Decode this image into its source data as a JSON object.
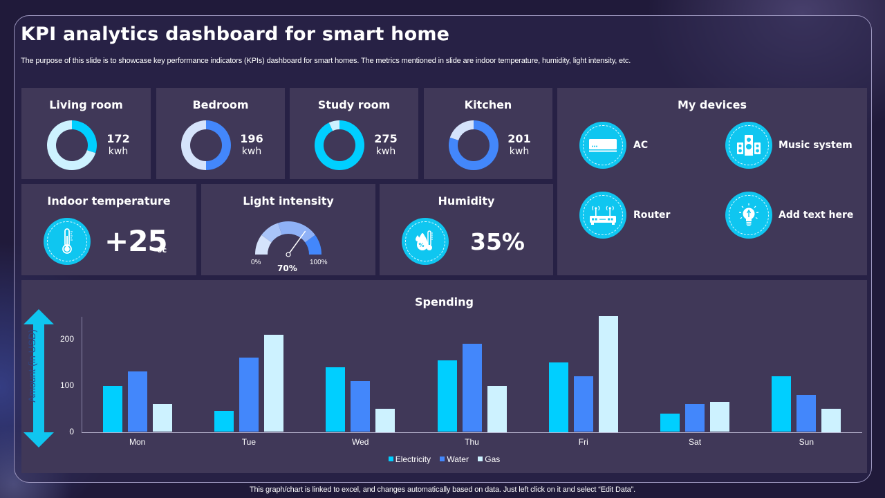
{
  "header": {
    "title": "KPI analytics dashboard for smart home",
    "subtitle": "The purpose of this slide is to showcase key performance indicators (KPIs) dashboard for smart homes. The metrics mentioned in slide are indoor temperature, humidity, light intensity, etc."
  },
  "colors": {
    "cyan": "#00cfff",
    "blue": "#4387fb",
    "pale": "#cdf2ff",
    "pale_blue": "#d5e3fb",
    "panel": "#403858",
    "background": "#201a3a"
  },
  "rooms": [
    {
      "name": "Living room",
      "value": "172",
      "unit": "kwh",
      "percent": 30,
      "color": "#00cfff",
      "track": "#cdf2ff"
    },
    {
      "name": "Bedroom",
      "value": "196",
      "unit": "kwh",
      "percent": 50,
      "color": "#4387fb",
      "track": "#d5e3fb"
    },
    {
      "name": "Study room",
      "value": "275",
      "unit": "kwh",
      "percent": 93,
      "color": "#00cfff",
      "track": "#cdf2ff"
    },
    {
      "name": "Kitchen",
      "value": "201",
      "unit": "kwh",
      "percent": 80,
      "color": "#4387fb",
      "track": "#d5e3fb"
    }
  ],
  "indoor_temperature": {
    "title": "Indoor temperature",
    "value": "+25",
    "unit": "0c",
    "icon": "thermometer-icon"
  },
  "light_intensity": {
    "title": "Light intensity",
    "min_label": "0%",
    "max_label": "100%",
    "value_label": "70%",
    "value": 70
  },
  "humidity": {
    "title": "Humidity",
    "value": "35%",
    "icon": "humidity-icon"
  },
  "devices": {
    "title": "My devices",
    "items": [
      {
        "label": "AC",
        "icon": "air-conditioner-icon"
      },
      {
        "label": "Music system",
        "icon": "speaker-icon"
      },
      {
        "label": "Router",
        "icon": "router-icon"
      },
      {
        "label": "Add text here",
        "icon": "lightbulb-icon"
      }
    ]
  },
  "chart_data": {
    "type": "bar",
    "title": "Spending",
    "xlabel": "",
    "ylabel": "Amount (in USD)",
    "ylim": [
      0,
      250
    ],
    "yticks": [
      0,
      100,
      200
    ],
    "grid": false,
    "legend_position": "bottom",
    "categories": [
      "Mon",
      "Tue",
      "Wed",
      "Thu",
      "Fri",
      "Sat",
      "Sun"
    ],
    "series": [
      {
        "name": "Electricity",
        "color": "#00cfff",
        "values": [
          100,
          45,
          140,
          155,
          150,
          40,
          120
        ]
      },
      {
        "name": "Water",
        "color": "#4387fb",
        "values": [
          130,
          160,
          110,
          190,
          120,
          60,
          80
        ]
      },
      {
        "name": "Gas",
        "color": "#cdf2ff",
        "values": [
          60,
          210,
          50,
          100,
          250,
          65,
          50
        ]
      }
    ]
  },
  "footer": {
    "note": "This graph/chart is linked to excel,  and changes automatically based on data. Just left click on it and select “Edit Data”."
  }
}
